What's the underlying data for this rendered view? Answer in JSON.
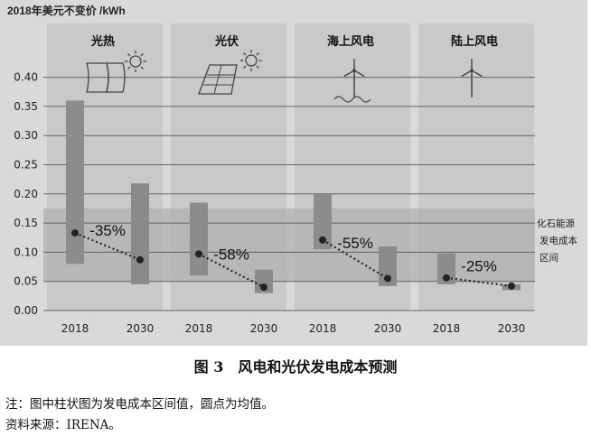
{
  "chart_data": {
    "type": "bar",
    "title": "",
    "ylabel": "2018年美元不变价 /kWh",
    "ylim": [
      0,
      0.45
    ],
    "yticks": [
      "0.00",
      "0.05",
      "0.10",
      "0.15",
      "0.20",
      "0.25",
      "0.30",
      "0.35",
      "0.40"
    ],
    "grid": true,
    "fossil_band": {
      "label_lines": [
        "化石能源",
        "发电成本",
        "区间"
      ],
      "range": [
        0.05,
        0.175
      ]
    },
    "groups": [
      {
        "name": "光热",
        "icon": "solar-thermal-collector-icon",
        "change_label": "-35%",
        "bars": [
          {
            "year": "2018",
            "low": 0.08,
            "high": 0.36,
            "mean": 0.133
          },
          {
            "year": "2030",
            "low": 0.045,
            "high": 0.218,
            "mean": 0.087
          }
        ]
      },
      {
        "name": "光伏",
        "icon": "solar-panel-icon",
        "change_label": "-58%",
        "bars": [
          {
            "year": "2018",
            "low": 0.06,
            "high": 0.185,
            "mean": 0.097
          },
          {
            "year": "2030",
            "low": 0.03,
            "high": 0.07,
            "mean": 0.04
          }
        ]
      },
      {
        "name": "海上风电",
        "icon": "offshore-wind-turbine-icon",
        "change_label": "-55%",
        "bars": [
          {
            "year": "2018",
            "low": 0.105,
            "high": 0.2,
            "mean": 0.121
          },
          {
            "year": "2030",
            "low": 0.042,
            "high": 0.11,
            "mean": 0.055
          }
        ]
      },
      {
        "name": "陆上风电",
        "icon": "onshore-wind-turbine-icon",
        "change_label": "-25%",
        "bars": [
          {
            "year": "2018",
            "low": 0.045,
            "high": 0.098,
            "mean": 0.056
          },
          {
            "year": "2030",
            "low": 0.035,
            "high": 0.045,
            "mean": 0.042
          }
        ]
      }
    ]
  },
  "caption": "图 3　风电和光伏发电成本预测",
  "notes": [
    "注：图中柱状图为发电成本区间值，圆点为均值。",
    "资料来源：IRENA。"
  ],
  "colors": {
    "background": "#d9d9d9",
    "panel": "#c9c9c9",
    "fossil_band": "#b0b0b0",
    "bar_2018": "#8c8c8c",
    "bar_2030": "#8a8a8a",
    "mean_dot": "#222222",
    "grid": "#4a4a4a"
  }
}
